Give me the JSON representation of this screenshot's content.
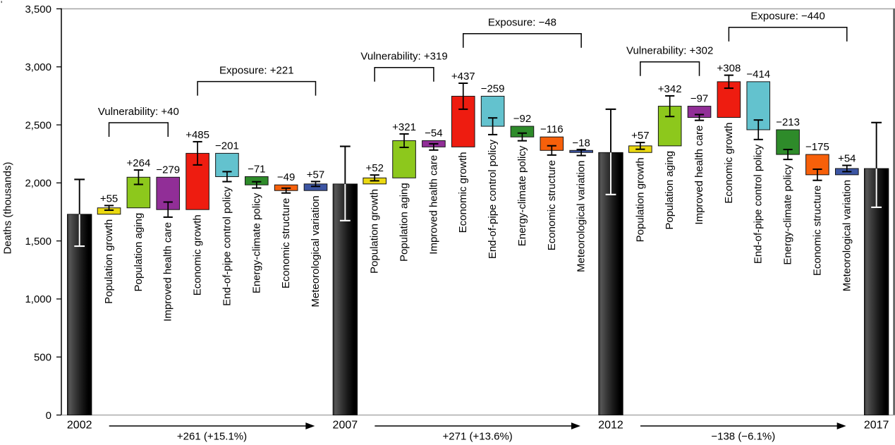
{
  "figure": {
    "background": "#ffffff",
    "corner_artifact": "'"
  },
  "chart_data": {
    "type": "bar",
    "subtype": "waterfall-decomposition",
    "title": "",
    "xlabel": "",
    "ylabel": "Deaths (thousands)",
    "ylim": [
      0,
      3500
    ],
    "grid": "off",
    "legend": "none",
    "yticks": [
      {
        "value": 0,
        "label": "0"
      },
      {
        "value": 500,
        "label": "500"
      },
      {
        "value": 1000,
        "label": "1,000"
      },
      {
        "value": 1500,
        "label": "1,500"
      },
      {
        "value": 2000,
        "label": "2,000"
      },
      {
        "value": 2500,
        "label": "2,500"
      },
      {
        "value": 3000,
        "label": "3,000"
      },
      {
        "value": 3500,
        "label": "3,500"
      }
    ],
    "factors": [
      {
        "name": "Population growth",
        "color": "#EBD911"
      },
      {
        "name": "Population aging",
        "color": "#8DC81C"
      },
      {
        "name": "Improved health care",
        "color": "#912E97"
      },
      {
        "name": "Economic growth",
        "color": "#EE1C10"
      },
      {
        "name": "End-of-pipe control policy",
        "color": "#63C2CE"
      },
      {
        "name": "Energy-climate policy",
        "color": "#2E8B2A"
      },
      {
        "name": "Economic structure",
        "color": "#F7600A"
      },
      {
        "name": "Meteorological variation",
        "color": "#3C55A3"
      }
    ],
    "year_bar_colors": {
      "left": "#2b2b2b",
      "highlight": "#565656",
      "right": "#000000"
    },
    "years": [
      {
        "label": "2002",
        "value": 1730,
        "ci": [
          1455,
          2030
        ]
      },
      {
        "label": "2007",
        "value": 1991,
        "ci": [
          1675,
          2315
        ]
      },
      {
        "label": "2012",
        "value": 2262,
        "ci": [
          1900,
          2635
        ]
      },
      {
        "label": "2017",
        "value": 2124,
        "ci": [
          1790,
          2520
        ]
      }
    ],
    "periods": [
      {
        "from": "2002",
        "to": "2007",
        "change_label": "+261 (+15.1%)",
        "vulnerability_label": "Vulnerability: +40",
        "exposure_label": "Exposure: +221",
        "deltas": [
          55,
          264,
          -279,
          485,
          -201,
          -71,
          -49,
          57
        ],
        "delta_labels": [
          "+55",
          "+264",
          "−279",
          "+485",
          "−201",
          "−71",
          "−49",
          "+57"
        ],
        "errors": [
          20,
          62,
          65,
          100,
          43,
          27,
          21,
          21
        ]
      },
      {
        "from": "2007",
        "to": "2012",
        "change_label": "+271 (+13.6%)",
        "vulnerability_label": "Vulnerability: +319",
        "exposure_label": "Exposure: −48",
        "deltas": [
          52,
          321,
          -54,
          437,
          -259,
          -92,
          -116,
          -18
        ],
        "delta_labels": [
          "+52",
          "+321",
          "−54",
          "+437",
          "−259",
          "−92",
          "−116",
          "−18"
        ],
        "errors": [
          25,
          58,
          27,
          112,
          72,
          33,
          40,
          26
        ]
      },
      {
        "from": "2012",
        "to": "2017",
        "change_label": "−138 (−6.1%)",
        "vulnerability_label": "Vulnerability: +302",
        "exposure_label": "Exposure: −440",
        "deltas": [
          57,
          342,
          -97,
          308,
          -414,
          -213,
          -175,
          54
        ],
        "delta_labels": [
          "+57",
          "+342",
          "−97",
          "+308",
          "−414",
          "−213",
          "−175",
          "+54"
        ],
        "errors": [
          29,
          89,
          25,
          56,
          84,
          43,
          48,
          27
        ]
      }
    ]
  }
}
